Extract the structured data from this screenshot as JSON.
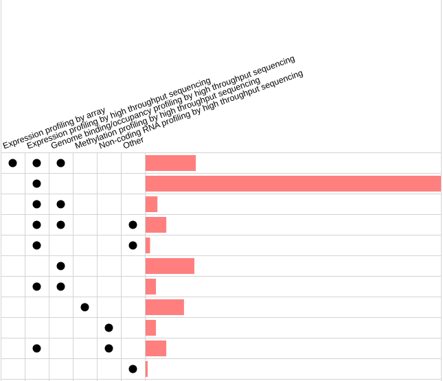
{
  "chart_data": {
    "type": "bar",
    "columns": [
      "Expression profiling by array",
      "Expression profiling by high throughput sequencing",
      "Genome binding/occupancy profiling by high throughput sequencing",
      "Methylation profiling by high throughput sequencing",
      "Non-coding RNA profiling by high throughput sequencing",
      "Other"
    ],
    "rows": [
      {
        "members": [
          0,
          1,
          2
        ],
        "value": 17
      },
      {
        "members": [
          1
        ],
        "value": 100
      },
      {
        "members": [
          1,
          2
        ],
        "value": 4
      },
      {
        "members": [
          1,
          2,
          5
        ],
        "value": 7
      },
      {
        "members": [
          1,
          5
        ],
        "value": 1.5
      },
      {
        "members": [
          2
        ],
        "value": 16.5
      },
      {
        "members": [
          1,
          2
        ],
        "value": 3.5
      },
      {
        "members": [
          3
        ],
        "value": 13
      },
      {
        "members": [
          4
        ],
        "value": 3.5
      },
      {
        "members": [
          1,
          4
        ],
        "value": 7
      },
      {
        "members": [
          5
        ],
        "value": 0.7
      }
    ],
    "xlim": [
      0,
      100
    ],
    "grid": true,
    "colors": {
      "bar": "#ff7f7f",
      "dot": "#000000",
      "grid": "#d3d3d3"
    }
  }
}
